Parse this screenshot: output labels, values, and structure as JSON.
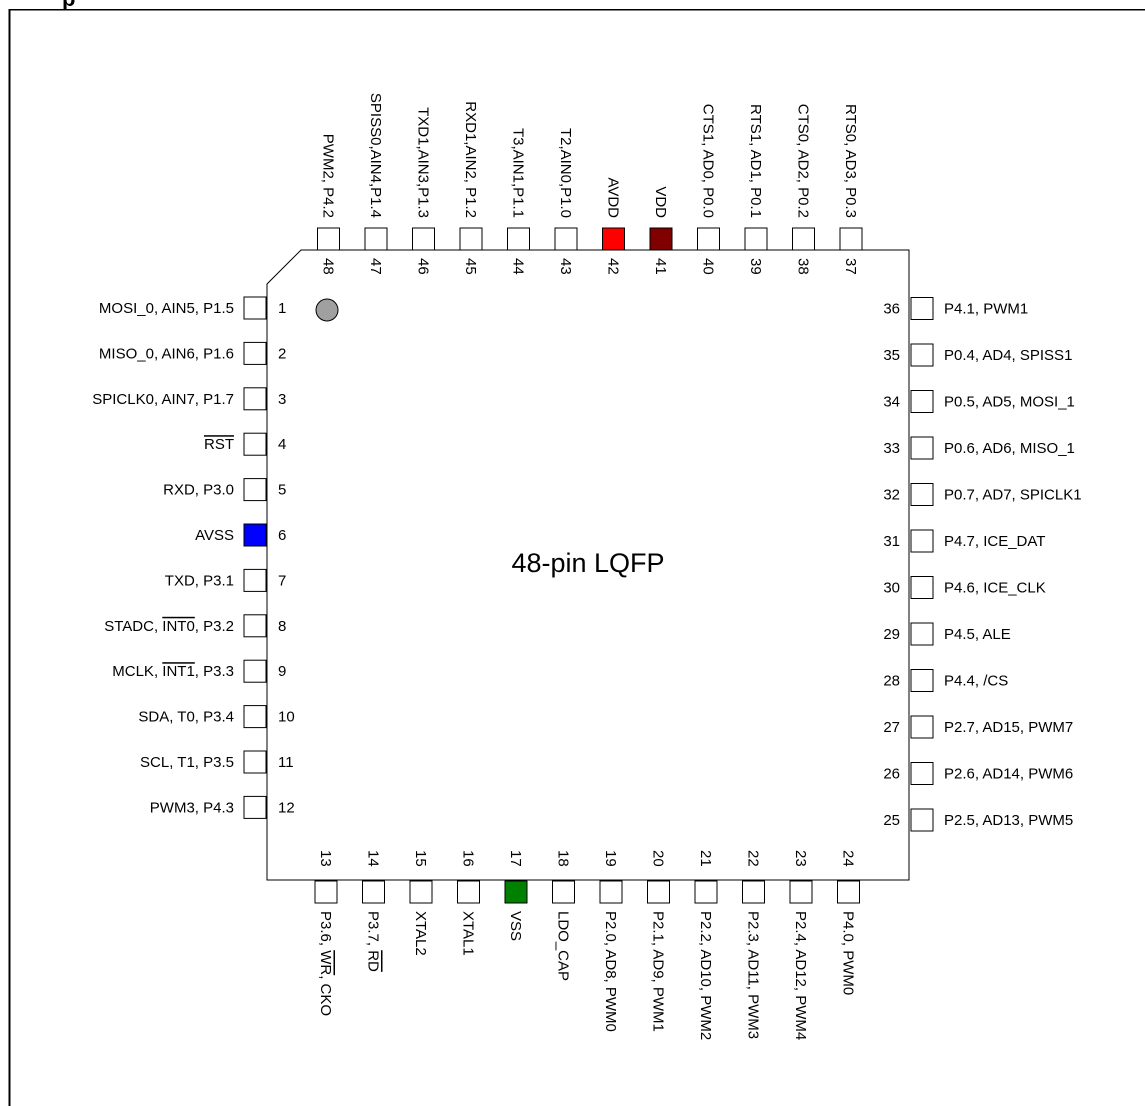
{
  "package_title": "48-pin LQFP",
  "header_fragment": "p",
  "colors": {
    "RST": "#ff0000",
    "AVSS": "#0000ff",
    "VSS": "#008000",
    "AVDD": "#ff0000",
    "VDD": "#800000",
    "default_pad": "#ffffff",
    "pin1_dot": "#a0a0a0"
  },
  "pins": {
    "left": [
      {
        "num": "1",
        "label": "MOSI_0, AIN5, P1.5"
      },
      {
        "num": "2",
        "label": "MISO_0, AIN6, P1.6"
      },
      {
        "num": "3",
        "label": "SPICLK0, AIN7, P1.7"
      },
      {
        "num": "4",
        "label": "RST",
        "overline": true,
        "color": "RST"
      },
      {
        "num": "5",
        "label": "RXD, P3.0"
      },
      {
        "num": "6",
        "label": "AVSS",
        "fill": "AVSS"
      },
      {
        "num": "7",
        "label": "TXD, P3.1"
      },
      {
        "num": "8",
        "label": "STADC, INT0, P3.2"
      },
      {
        "num": "9",
        "label": "MCLK, INT1, P3.3"
      },
      {
        "num": "10",
        "label": "SDA, T0, P3.4"
      },
      {
        "num": "11",
        "label": "SCL, T1, P3.5"
      },
      {
        "num": "12",
        "label": "PWM3, P4.3"
      }
    ],
    "bottom": [
      {
        "num": "13",
        "label": "P3.6, WR, CKO"
      },
      {
        "num": "14",
        "label": "P3.7, RD"
      },
      {
        "num": "15",
        "label": "XTAL2"
      },
      {
        "num": "16",
        "label": "XTAL1"
      },
      {
        "num": "17",
        "label": "VSS",
        "fill": "VSS"
      },
      {
        "num": "18",
        "label": "LDO_CAP"
      },
      {
        "num": "19",
        "label": "P2.0, AD8, PWM0"
      },
      {
        "num": "20",
        "label": "P2.1, AD9, PWM1"
      },
      {
        "num": "21",
        "label": "P2.2, AD10, PWM2"
      },
      {
        "num": "22",
        "label": "P2.3, AD11, PWM3"
      },
      {
        "num": "23",
        "label": "P2.4, AD12, PWM4"
      },
      {
        "num": "24",
        "label": "P4.0, PWM0"
      }
    ],
    "right": [
      {
        "num": "25",
        "label": "P2.5, AD13, PWM5"
      },
      {
        "num": "26",
        "label": "P2.6, AD14, PWM6"
      },
      {
        "num": "27",
        "label": "P2.7, AD15, PWM7"
      },
      {
        "num": "28",
        "label": "P4.4, /CS"
      },
      {
        "num": "29",
        "label": "P4.5, ALE"
      },
      {
        "num": "30",
        "label": "P4.6, ICE_CLK"
      },
      {
        "num": "31",
        "label": "P4.7, ICE_DAT"
      },
      {
        "num": "32",
        "label": "P0.7, AD7, SPICLK1"
      },
      {
        "num": "33",
        "label": "P0.6, AD6, MISO_1"
      },
      {
        "num": "34",
        "label": "P0.5, AD5, MOSI_1"
      },
      {
        "num": "35",
        "label": "P0.4, AD4, SPISS1"
      },
      {
        "num": "36",
        "label": "P4.1, PWM1"
      }
    ],
    "top": [
      {
        "num": "37",
        "label": "RTS0, AD3, P0.3"
      },
      {
        "num": "38",
        "label": "CTS0, AD2, P0.2"
      },
      {
        "num": "39",
        "label": "RTS1, AD1, P0.1"
      },
      {
        "num": "40",
        "label": "CTS1, AD0, P0.0"
      },
      {
        "num": "41",
        "label": "VDD",
        "fill": "VDD"
      },
      {
        "num": "42",
        "label": "AVDD",
        "fill": "AVDD"
      },
      {
        "num": "43",
        "label": "T2,AIN0,P1.0"
      },
      {
        "num": "44",
        "label": "T3,AIN1,P1.1"
      },
      {
        "num": "45",
        "label": "RXD1,AIN2, P1.2"
      },
      {
        "num": "46",
        "label": "TXD1,AIN3,P1.3"
      },
      {
        "num": "47",
        "label": "SPISS0,AIN4,P1.4"
      },
      {
        "num": "48",
        "label": "PWM2, P4.2"
      }
    ]
  }
}
